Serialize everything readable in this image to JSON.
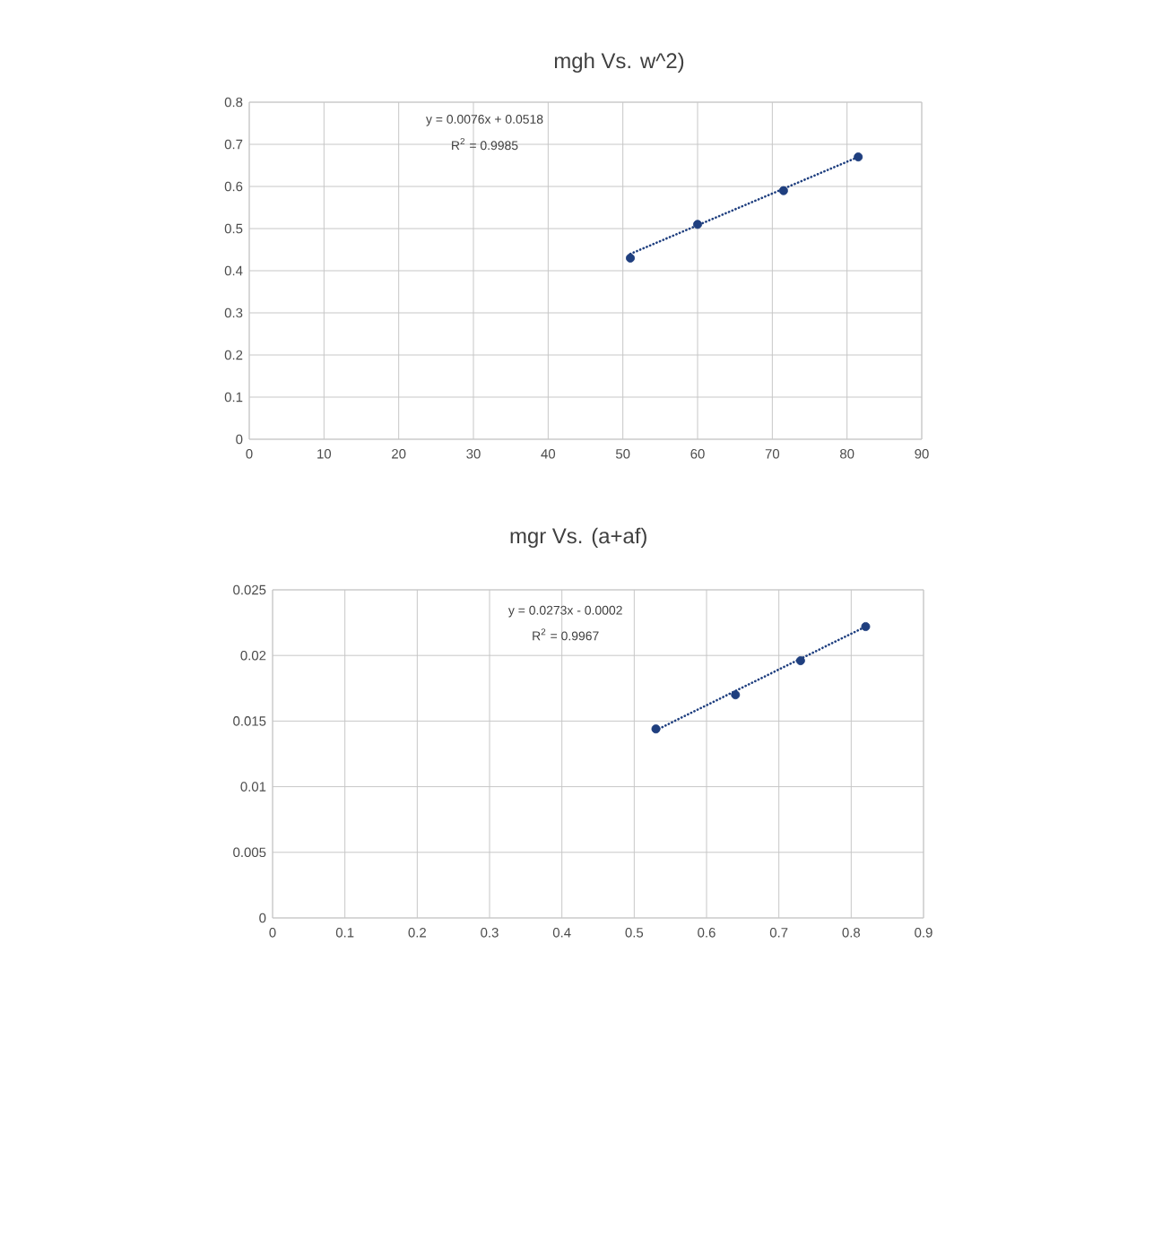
{
  "chart_data": [
    {
      "type": "scatter",
      "title": "mgh Vs. w^2)",
      "xlim": [
        0,
        90
      ],
      "xticks": [
        0,
        10,
        20,
        30,
        40,
        50,
        60,
        70,
        80,
        90
      ],
      "ylim": [
        0,
        0.8
      ],
      "yticks": [
        0,
        0.1,
        0.2,
        0.3,
        0.4,
        0.5,
        0.6,
        0.7,
        0.8
      ],
      "grid": true,
      "marker": "circle",
      "series": [
        {
          "x": [
            51,
            60,
            71.5,
            81.5
          ],
          "values": [
            0.43,
            0.51,
            0.59,
            0.67
          ],
          "color": "#1f3f7f"
        },
        {
          "type": "line",
          "x": [
            51,
            81.5
          ],
          "values": [
            0.44,
            0.67
          ],
          "color": "#1f3f7f",
          "line_style": "dotted",
          "marker": "none"
        }
      ],
      "annotations": [
        "y = 0.0076x + 0.0518",
        "R$^{2}$ = 0.9985"
      ]
    },
    {
      "type": "scatter",
      "title": "mgr Vs. (a+af)",
      "xlim": [
        0,
        0.9
      ],
      "xticks": [
        0,
        0.1,
        0.2,
        0.3,
        0.4,
        0.5,
        0.6,
        0.7,
        0.8,
        0.9
      ],
      "ylim": [
        0,
        0.025
      ],
      "yticks": [
        0,
        0.005,
        0.01,
        0.015,
        0.02,
        0.025
      ],
      "grid": true,
      "marker": "circle",
      "series": [
        {
          "x": [
            0.53,
            0.64,
            0.73,
            0.82
          ],
          "values": [
            0.0144,
            0.017,
            0.0196,
            0.0222
          ],
          "color": "#1f3f7f"
        },
        {
          "type": "line",
          "x": [
            0.53,
            0.82
          ],
          "values": [
            0.0143,
            0.0222
          ],
          "color": "#1f3f7f",
          "line_style": "dotted",
          "marker": "none"
        }
      ],
      "annotations": [
        "y = 0.0273x - 0.0002",
        "R$^{2}$ = 0.9967"
      ]
    }
  ]
}
